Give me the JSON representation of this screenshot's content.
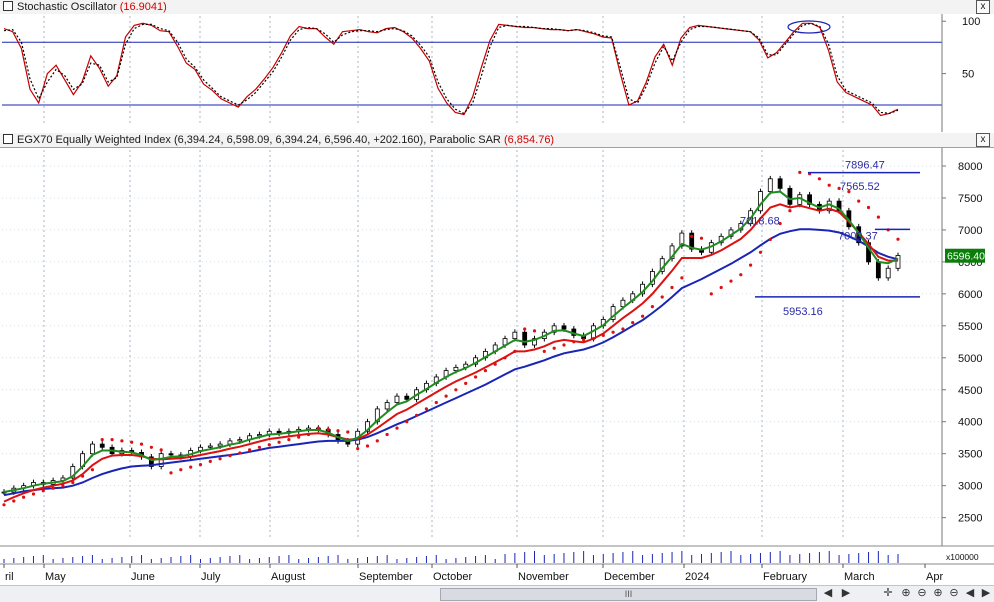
{
  "stoch_panel": {
    "title": "Stochastic Oscillator",
    "value": "(16.9041)",
    "close_glyph": "x"
  },
  "main_panel": {
    "title": "EGX70 Equally Weighted Index",
    "ohlc": "(6,394.24, 6,598.09, 6,394.24, 6,596.40, +202.160)",
    "overlay_name": "Parabolic SAR",
    "overlay_value": "(6,854.76)",
    "close_glyph": "x"
  },
  "volume_label": "x100000",
  "scroll_glyph": "III",
  "nav_glyphs": [
    "◀",
    "▶",
    "✛",
    "⊕",
    "⊖",
    "⊕",
    "⊖",
    "◀",
    "▶"
  ],
  "colors": {
    "price": "#000000",
    "ma_green": "#1f8c1f",
    "ma_red": "#dd1111",
    "ma_blue": "#1a25b5",
    "sar": "#dd1111",
    "stoch_main": "#c40000",
    "stoch_signal": "#000000",
    "levels": "#1a25b5",
    "grid": "#a9b4c6"
  },
  "chart_data": [
    {
      "type": "line",
      "title": "Stochastic Oscillator",
      "ylim": [
        0,
        105
      ],
      "y_ticks": [
        "100",
        "50"
      ],
      "reference_lines": [
        80,
        20
      ],
      "grid": true,
      "series": [
        {
          "values": [
            93,
            90,
            74,
            35,
            22,
            50,
            58,
            44,
            30,
            42,
            67,
            55,
            38,
            48,
            85,
            96,
            98,
            96,
            91,
            90,
            76,
            60,
            54,
            40,
            34,
            26,
            22,
            18,
            28,
            35,
            45,
            56,
            70,
            86,
            95,
            93,
            93,
            85,
            78,
            90,
            91,
            92,
            90,
            89,
            93,
            94,
            90,
            84,
            74,
            62,
            36,
            22,
            13,
            11,
            28,
            56,
            82,
            97,
            96,
            95,
            94,
            94,
            93,
            92,
            92,
            91,
            92,
            90,
            88,
            85,
            84,
            50,
            20,
            24,
            42,
            66,
            78,
            58,
            84,
            94,
            96,
            95,
            94,
            93,
            92,
            91,
            90,
            82,
            65,
            70,
            80,
            90,
            98,
            98,
            94,
            72,
            42,
            32,
            28,
            24,
            20,
            10,
            12,
            16
          ]
        },
        {
          "values": [
            91,
            92,
            80,
            45,
            26,
            42,
            54,
            48,
            35,
            40,
            60,
            58,
            42,
            46,
            78,
            93,
            97,
            97,
            93,
            91,
            80,
            64,
            56,
            44,
            36,
            28,
            24,
            20,
            25,
            32,
            42,
            52,
            66,
            82,
            92,
            94,
            93,
            88,
            80,
            87,
            90,
            91,
            91,
            90,
            92,
            93,
            91,
            86,
            77,
            66,
            42,
            26,
            16,
            12,
            22,
            48,
            76,
            94,
            96,
            95,
            95,
            94,
            93,
            93,
            92,
            91,
            92,
            91,
            89,
            86,
            85,
            56,
            26,
            22,
            38,
            60,
            76,
            62,
            80,
            92,
            95,
            95,
            94,
            93,
            92,
            91,
            90,
            84,
            68,
            68,
            78,
            88,
            96,
            98,
            95,
            78,
            48,
            34,
            30,
            26,
            22,
            13,
            12,
            15
          ]
        }
      ]
    },
    {
      "type": "line",
      "title": "EGX70 Equally Weighted Index",
      "x_ticks": [
        "ril",
        "May",
        "June",
        "July",
        "August",
        "September",
        "October",
        "November",
        "December",
        "2024",
        "February",
        "March",
        "Apr"
      ],
      "ylim": [
        2150,
        8250
      ],
      "y_ticks": [
        "8000",
        "7500",
        "7000",
        "6500",
        "6000",
        "5500",
        "5000",
        "4500",
        "4000",
        "3500",
        "3000",
        "2500"
      ],
      "last_price_label": "6596.40",
      "annotations": [
        "7896.47",
        "7565.52",
        "7018.68",
        "7009.37",
        "5953.16"
      ],
      "horizontal_levels": [
        7896.47,
        7009.37,
        5953.16
      ],
      "grid": true,
      "series": [
        {
          "name": "Close",
          "values": [
            2900,
            2960,
            3000,
            3050,
            3020,
            3080,
            3120,
            3300,
            3500,
            3650,
            3600,
            3500,
            3550,
            3520,
            3450,
            3300,
            3500,
            3480,
            3450,
            3550,
            3600,
            3620,
            3650,
            3700,
            3720,
            3780,
            3800,
            3850,
            3820,
            3850,
            3880,
            3900,
            3880,
            3800,
            3700,
            3650,
            3850,
            4000,
            4200,
            4300,
            4400,
            4350,
            4500,
            4600,
            4700,
            4800,
            4850,
            4900,
            5000,
            5100,
            5200,
            5300,
            5400,
            5200,
            5300,
            5400,
            5500,
            5450,
            5350,
            5300,
            5500,
            5600,
            5800,
            5900,
            6000,
            6150,
            6350,
            6550,
            6750,
            6950,
            6700,
            6650,
            6800,
            6900,
            7000,
            7100,
            7300,
            7600,
            7800,
            7650,
            7400,
            7550,
            7400,
            7300,
            7450,
            7300,
            7050,
            6800,
            6500,
            6250,
            6400,
            6600
          ]
        },
        {
          "name": "MA green",
          "values": [
            2900,
            2930,
            2960,
            3000,
            3030,
            3050,
            3070,
            3150,
            3300,
            3480,
            3550,
            3550,
            3530,
            3520,
            3480,
            3400,
            3420,
            3450,
            3460,
            3490,
            3540,
            3570,
            3600,
            3640,
            3670,
            3720,
            3760,
            3800,
            3810,
            3830,
            3850,
            3870,
            3870,
            3830,
            3760,
            3700,
            3750,
            3870,
            4020,
            4150,
            4270,
            4320,
            4420,
            4510,
            4610,
            4700,
            4780,
            4840,
            4920,
            5010,
            5100,
            5190,
            5280,
            5250,
            5280,
            5340,
            5420,
            5430,
            5380,
            5340,
            5420,
            5510,
            5650,
            5780,
            5900,
            6030,
            6200,
            6400,
            6580,
            6780,
            6720,
            6690,
            6740,
            6820,
            6920,
            7020,
            7180,
            7400,
            7580,
            7600,
            7480,
            7500,
            7420,
            7350,
            7400,
            7330,
            7150,
            6950,
            6720,
            6500,
            6480,
            6550
          ]
        },
        {
          "name": "MA red",
          "values": [
            2750,
            2820,
            2880,
            2930,
            2970,
            3000,
            3030,
            3080,
            3180,
            3320,
            3420,
            3470,
            3480,
            3480,
            3460,
            3420,
            3410,
            3420,
            3430,
            3450,
            3480,
            3510,
            3540,
            3580,
            3610,
            3650,
            3690,
            3730,
            3750,
            3770,
            3790,
            3810,
            3820,
            3800,
            3760,
            3720,
            3730,
            3800,
            3900,
            4010,
            4120,
            4190,
            4280,
            4370,
            4460,
            4550,
            4630,
            4700,
            4770,
            4850,
            4930,
            5010,
            5100,
            5100,
            5130,
            5180,
            5250,
            5280,
            5260,
            5240,
            5300,
            5380,
            5500,
            5620,
            5730,
            5850,
            6000,
            6180,
            6360,
            6560,
            6560,
            6560,
            6610,
            6680,
            6770,
            6860,
            7000,
            7180,
            7350,
            7400,
            7350,
            7380,
            7340,
            7300,
            7330,
            7280,
            7130,
            6960,
            6780,
            6580,
            6520,
            6520
          ]
        },
        {
          "name": "MA blue",
          "values": [
            2850,
            2880,
            2910,
            2930,
            2950,
            2960,
            2970,
            3000,
            3050,
            3120,
            3180,
            3230,
            3270,
            3300,
            3310,
            3320,
            3340,
            3360,
            3380,
            3400,
            3420,
            3440,
            3460,
            3480,
            3500,
            3530,
            3560,
            3590,
            3610,
            3630,
            3650,
            3670,
            3690,
            3700,
            3700,
            3700,
            3720,
            3760,
            3820,
            3890,
            3960,
            4020,
            4090,
            4160,
            4230,
            4300,
            4370,
            4440,
            4510,
            4580,
            4660,
            4740,
            4820,
            4860,
            4910,
            4960,
            5020,
            5070,
            5100,
            5130,
            5180,
            5240,
            5320,
            5410,
            5500,
            5590,
            5700,
            5820,
            5950,
            6090,
            6160,
            6230,
            6310,
            6390,
            6470,
            6560,
            6650,
            6760,
            6860,
            6940,
            6980,
            7010,
            7010,
            7000,
            6990,
            6960,
            6900,
            6830,
            6740,
            6640,
            6580,
            6540
          ]
        },
        {
          "name": "Parabolic SAR",
          "values": [
            2700,
            2760,
            2820,
            2870,
            2920,
            2960,
            3000,
            3050,
            3150,
            3250,
            3720,
            3720,
            3700,
            3680,
            3650,
            3600,
            3560,
            3200,
            3250,
            3290,
            3330,
            3380,
            3420,
            3470,
            3510,
            3560,
            3600,
            3640,
            3680,
            3720,
            3760,
            3800,
            3900,
            3880,
            3860,
            3840,
            3580,
            3620,
            3700,
            3800,
            3900,
            4000,
            4100,
            4200,
            4300,
            4400,
            4500,
            4600,
            4700,
            4800,
            4900,
            5000,
            5100,
            5450,
            5420,
            5100,
            5150,
            5200,
            5250,
            5280,
            5300,
            5350,
            5400,
            5450,
            5550,
            5650,
            5800,
            5950,
            6100,
            6250,
            6900,
            6870,
            6000,
            6100,
            6200,
            6300,
            6450,
            6650,
            6850,
            7100,
            7300,
            7900,
            7880,
            7800,
            7700,
            7650,
            7600,
            7450,
            7350,
            7200,
            7000,
            6854.76
          ]
        }
      ]
    }
  ]
}
